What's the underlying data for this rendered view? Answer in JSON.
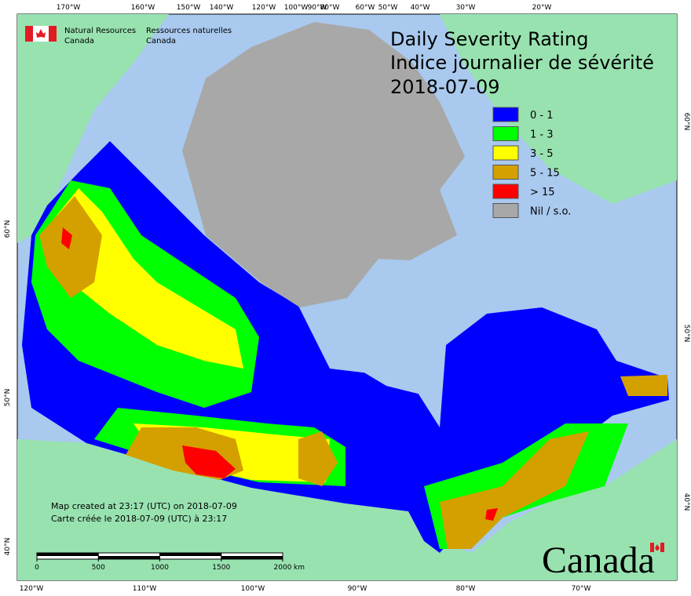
{
  "header": {
    "department_en": [
      "Natural Resources",
      "Canada"
    ],
    "department_fr": [
      "Ressources naturelles",
      "Canada"
    ]
  },
  "title": {
    "lines": [
      "Daily Severity Rating",
      "Indice journalier de sévérité",
      "2018-07-09"
    ]
  },
  "legend": {
    "items": [
      {
        "label": "0 - 1",
        "color": "#0000ff"
      },
      {
        "label": "1 - 3",
        "color": "#00ff00"
      },
      {
        "label": "3 - 5",
        "color": "#ffff00"
      },
      {
        "label": "5 - 15",
        "color": "#d4a000"
      },
      {
        "label": "> 15",
        "color": "#ff0000"
      },
      {
        "label": "Nil / s.o.",
        "color": "#a8a8a8"
      }
    ]
  },
  "graticule": {
    "top": [
      "170°W",
      "160°W",
      "150°W",
      "140°W",
      "120°W",
      "100°W",
      "90°W",
      "80°W",
      "60°W",
      "50°W",
      "40°W",
      "30°W",
      "20°W"
    ],
    "bottom": [
      "120°W",
      "110°W",
      "100°W",
      "90°W",
      "80°W",
      "70°W"
    ],
    "left": [
      "60°N",
      "50°N",
      "40°N"
    ],
    "right": [
      "60°N",
      "50°N",
      "40°N"
    ]
  },
  "notes": [
    "Map created at 23:17 (UTC) on 2018-07-09",
    "Carte créée le 2018-07-09 (UTC) à 23:17"
  ],
  "scale_bar": {
    "ticks": [
      0,
      500,
      1000,
      1500,
      2000
    ],
    "unit": "km"
  },
  "wordmark": "Canada"
}
